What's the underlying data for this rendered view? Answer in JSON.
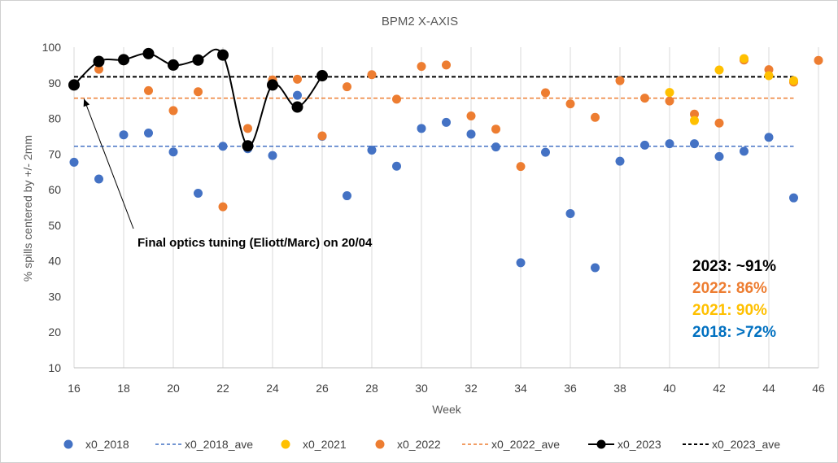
{
  "chart_data": {
    "type": "scatter",
    "title": "BPM2 X-AXIS",
    "xlabel": "Week",
    "ylabel": "% spills centered by +/- 2mm",
    "xlim": [
      16,
      46
    ],
    "ylim": [
      10,
      100
    ],
    "x_ticks": [
      "16",
      "18",
      "20",
      "22",
      "24",
      "26",
      "28",
      "30",
      "32",
      "34",
      "36",
      "38",
      "40",
      "42",
      "44",
      "46"
    ],
    "y_ticks": [
      "10",
      "20",
      "30",
      "40",
      "50",
      "60",
      "70",
      "80",
      "90",
      "100"
    ],
    "grid": "vertical",
    "legend_position": "bottom",
    "series": [
      {
        "name": "x0_2018",
        "color": "#4472C4",
        "kind": "points",
        "points": [
          [
            16,
            67.7
          ],
          [
            17,
            63
          ],
          [
            18,
            75.4
          ],
          [
            19,
            75.9
          ],
          [
            20,
            70.6
          ],
          [
            21,
            59
          ],
          [
            22,
            72.2
          ],
          [
            23,
            71.5
          ],
          [
            24,
            69.6
          ],
          [
            25,
            86.5
          ],
          [
            26,
            75
          ],
          [
            27,
            58.3
          ],
          [
            28,
            71.1
          ],
          [
            29,
            66.6
          ],
          [
            30,
            77.2
          ],
          [
            31,
            78.9
          ],
          [
            32,
            75.6
          ],
          [
            33,
            72
          ],
          [
            34,
            39.5
          ],
          [
            35,
            70.5
          ],
          [
            36,
            53.3
          ],
          [
            37,
            38.1
          ],
          [
            38,
            68
          ],
          [
            39,
            72.5
          ],
          [
            40,
            72.9
          ],
          [
            41,
            72.9
          ],
          [
            42,
            69.3
          ],
          [
            43,
            70.8
          ],
          [
            44,
            74.7
          ],
          [
            45,
            57.7
          ]
        ]
      },
      {
        "name": "x0_2018_ave",
        "color": "#4472C4",
        "kind": "average",
        "x_range": [
          16,
          45
        ],
        "value": 72.2
      },
      {
        "name": "x0_2021",
        "color": "#FFC000",
        "kind": "points",
        "points": [
          [
            40,
            87.3
          ],
          [
            41,
            79.4
          ],
          [
            42,
            93.6
          ],
          [
            43,
            96.8
          ],
          [
            44,
            92
          ],
          [
            45,
            90.6
          ]
        ]
      },
      {
        "name": "x0_2022",
        "color": "#ED7D31",
        "kind": "points",
        "points": [
          [
            17,
            93.8
          ],
          [
            18,
            96.2
          ],
          [
            19,
            87.8
          ],
          [
            20,
            82.2
          ],
          [
            21,
            87.5
          ],
          [
            22,
            55.2
          ],
          [
            23,
            77.2
          ],
          [
            24,
            90.8
          ],
          [
            25,
            91
          ],
          [
            26,
            75.1
          ],
          [
            27,
            88.9
          ],
          [
            28,
            92.3
          ],
          [
            29,
            85.4
          ],
          [
            30,
            94.6
          ],
          [
            31,
            95
          ],
          [
            32,
            80.7
          ],
          [
            33,
            77
          ],
          [
            34,
            66.5
          ],
          [
            35,
            87.2
          ],
          [
            36,
            84.1
          ],
          [
            37,
            80.3
          ],
          [
            38,
            90.6
          ],
          [
            39,
            85.7
          ],
          [
            40,
            84.9
          ],
          [
            41,
            81.2
          ],
          [
            42,
            78.7
          ],
          [
            43,
            96.4
          ],
          [
            44,
            93.7
          ],
          [
            45,
            90.2
          ],
          [
            46,
            96.3
          ]
        ]
      },
      {
        "name": "x0_2022_ave",
        "color": "#ED7D31",
        "kind": "average",
        "x_range": [
          16,
          45
        ],
        "value": 85.7
      },
      {
        "name": "x0_2023",
        "color": "#000000",
        "kind": "line-points",
        "points": [
          [
            16,
            89.4
          ],
          [
            17,
            96
          ],
          [
            18,
            96.5
          ],
          [
            19,
            98.2
          ],
          [
            20,
            95
          ],
          [
            21,
            96.4
          ],
          [
            22,
            97.8
          ],
          [
            23,
            72.3
          ],
          [
            24,
            89.4
          ],
          [
            25,
            83.2
          ],
          [
            26,
            92
          ]
        ]
      },
      {
        "name": "x0_2023_ave",
        "color": "#000000",
        "kind": "average",
        "x_range": [
          16,
          45
        ],
        "value": 91.7
      }
    ],
    "annotation": {
      "text": "Final optics tuning (Eliott/Marc)  on 20/04",
      "target_x": 16.4,
      "target_y": 85.5
    },
    "summary": [
      {
        "text": "2023: ~91%",
        "color": "#000000"
      },
      {
        "text": "2022: 86%",
        "color": "#ED7D31"
      },
      {
        "text": "2021: 90%",
        "color": "#FFC000"
      },
      {
        "text": "2018: >72%",
        "color": "#0070C0"
      }
    ]
  }
}
